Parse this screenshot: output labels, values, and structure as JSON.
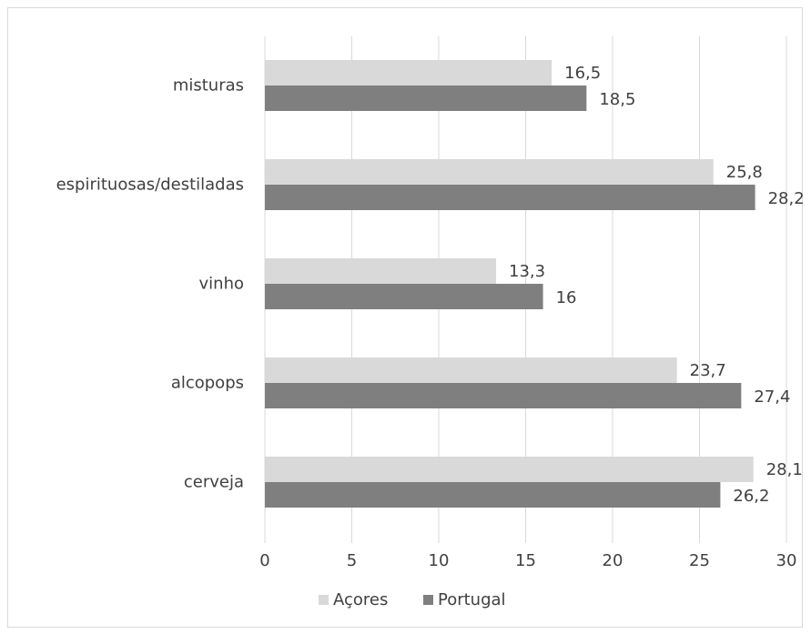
{
  "chart_data": {
    "type": "bar",
    "orientation": "horizontal",
    "categories": [
      "misturas",
      "espirituosas/destiladas",
      "vinho",
      "alcopops",
      "cerveja"
    ],
    "series": [
      {
        "name": "Açores",
        "color": "#d9d9d9",
        "values": [
          16.5,
          25.8,
          13.3,
          23.7,
          28.1
        ],
        "labels": [
          "16,5",
          "25,8",
          "13,3",
          "23,7",
          "28,1"
        ]
      },
      {
        "name": "Portugal",
        "color": "#7f7f7f",
        "values": [
          18.5,
          28.2,
          16,
          27.4,
          26.2
        ],
        "labels": [
          "18,5",
          "28,2",
          "16",
          "27,4",
          "26,2"
        ]
      }
    ],
    "xlim": [
      0,
      30
    ],
    "xticks": [
      0,
      5,
      10,
      15,
      20,
      25,
      30
    ],
    "grid": "vertical",
    "legend": "bottom"
  }
}
